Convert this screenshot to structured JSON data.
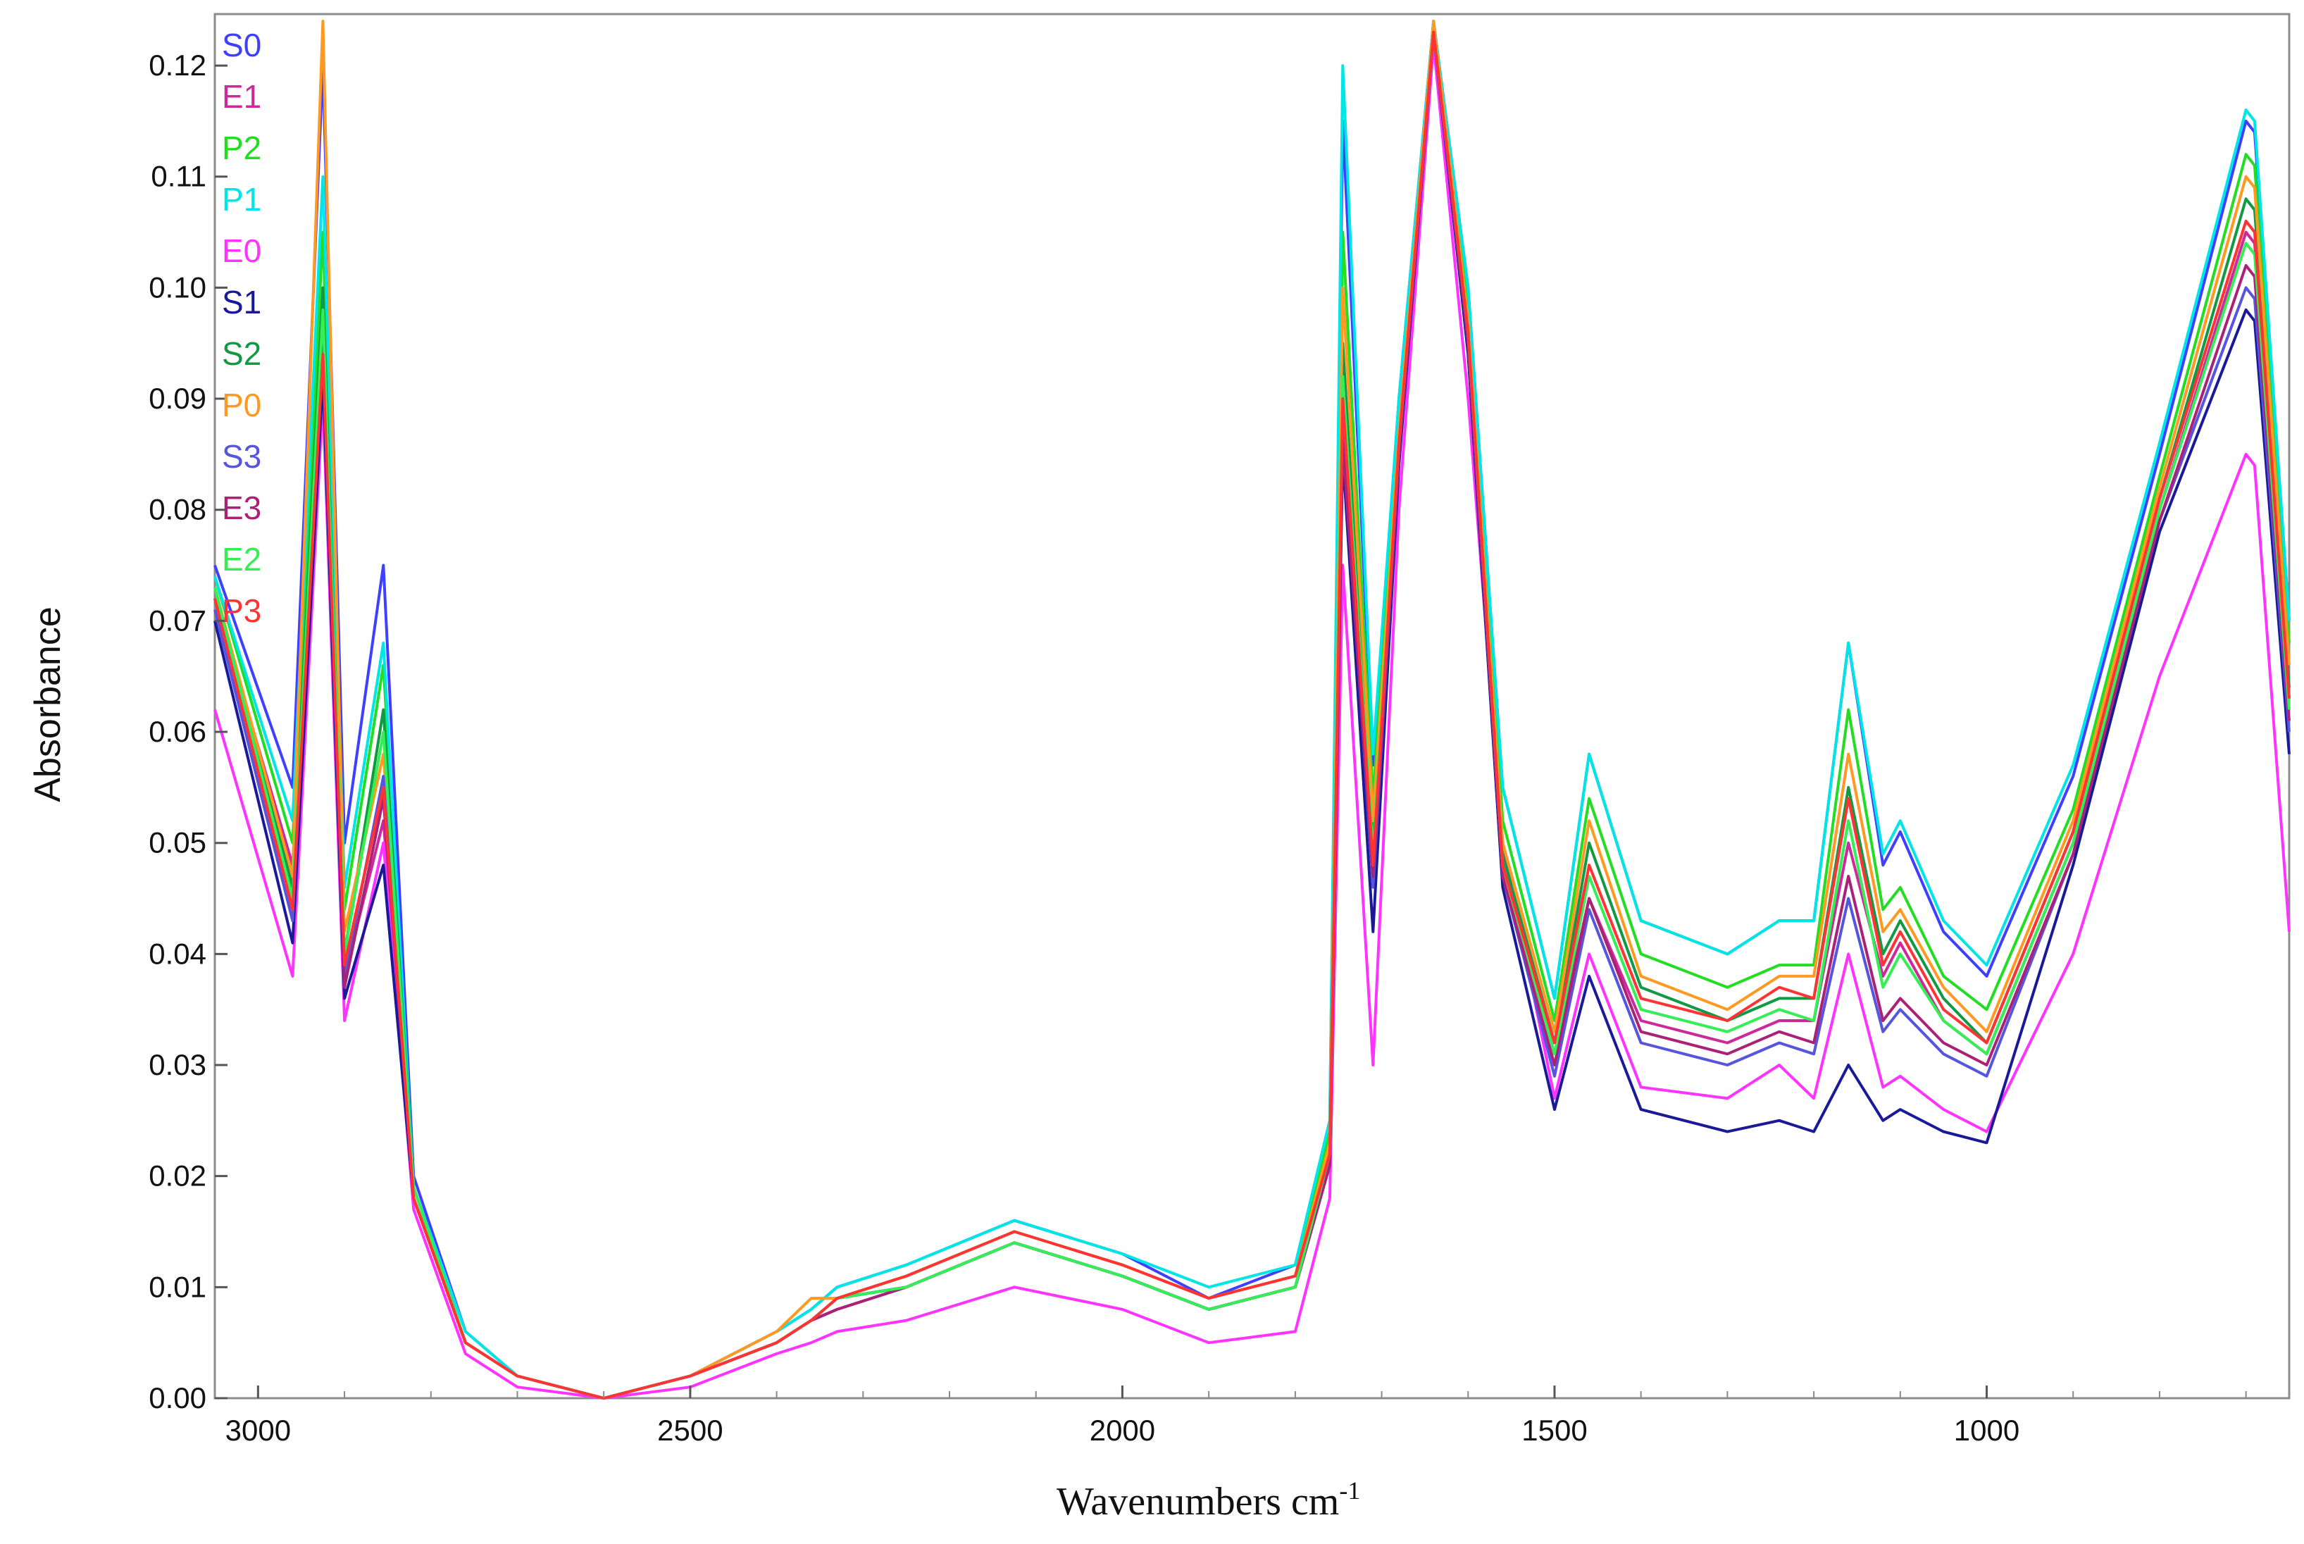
{
  "chart_data": {
    "type": "line",
    "title": "",
    "xlabel": "Wavenumbers cm",
    "xlabel_superscript": "-1",
    "ylabel": "Absorbance",
    "xlim": [
      3050,
      650
    ],
    "ylim": [
      0.0,
      0.124
    ],
    "x_reversed": true,
    "grid": false,
    "legend_position": "top-left",
    "x_tick_labels": [
      "3000",
      "2500",
      "2000",
      "1500",
      "1000"
    ],
    "y_tick_labels": [
      "0.00",
      "0.01",
      "0.02",
      "0.03",
      "0.04",
      "0.05",
      "0.06",
      "0.07",
      "0.08",
      "0.09",
      "0.10",
      "0.11",
      "0.12"
    ],
    "x_ticks": [
      3000,
      2500,
      2000,
      1500,
      1000
    ],
    "y_ticks": [
      0.0,
      0.01,
      0.02,
      0.03,
      0.04,
      0.05,
      0.06,
      0.07,
      0.08,
      0.09,
      0.1,
      0.11,
      0.12
    ],
    "x": [
      3050,
      2960,
      2925,
      2900,
      2855,
      2820,
      2760,
      2700,
      2600,
      2500,
      2400,
      2360,
      2330,
      2250,
      2125,
      2000,
      1900,
      1800,
      1760,
      1745,
      1710,
      1680,
      1640,
      1600,
      1560,
      1500,
      1460,
      1400,
      1300,
      1240,
      1200,
      1160,
      1120,
      1100,
      1050,
      1000,
      900,
      800,
      700,
      690,
      650
    ],
    "series": [
      {
        "name": "S0",
        "color": "#3f3fff",
        "values": [
          0.075,
          0.055,
          0.12,
          0.05,
          0.075,
          0.02,
          0.006,
          0.002,
          0.0,
          0.002,
          0.006,
          0.008,
          0.01,
          0.012,
          0.016,
          0.013,
          0.009,
          0.012,
          0.025,
          0.115,
          0.057,
          0.09,
          0.124,
          0.1,
          0.055,
          0.036,
          0.058,
          0.043,
          0.04,
          0.043,
          0.043,
          0.068,
          0.048,
          0.051,
          0.042,
          0.038,
          0.056,
          0.085,
          0.115,
          0.114,
          0.07
        ]
      },
      {
        "name": "E1",
        "color": "#cc2a9a",
        "values": [
          0.072,
          0.048,
          0.095,
          0.038,
          0.052,
          0.018,
          0.005,
          0.002,
          0.0,
          0.002,
          0.005,
          0.007,
          0.008,
          0.01,
          0.014,
          0.011,
          0.008,
          0.01,
          0.022,
          0.09,
          0.05,
          0.085,
          0.123,
          0.095,
          0.048,
          0.031,
          0.045,
          0.034,
          0.032,
          0.034,
          0.034,
          0.05,
          0.038,
          0.041,
          0.034,
          0.031,
          0.05,
          0.08,
          0.105,
          0.104,
          0.063
        ]
      },
      {
        "name": "P2",
        "color": "#22dd22",
        "values": [
          0.074,
          0.05,
          0.105,
          0.044,
          0.066,
          0.019,
          0.005,
          0.002,
          0.0,
          0.002,
          0.005,
          0.007,
          0.009,
          0.011,
          0.015,
          0.012,
          0.009,
          0.011,
          0.024,
          0.105,
          0.054,
          0.088,
          0.124,
          0.098,
          0.052,
          0.034,
          0.054,
          0.04,
          0.037,
          0.039,
          0.039,
          0.062,
          0.044,
          0.046,
          0.038,
          0.035,
          0.053,
          0.083,
          0.112,
          0.111,
          0.068
        ]
      },
      {
        "name": "P1",
        "color": "#00e5e5",
        "values": [
          0.074,
          0.052,
          0.11,
          0.046,
          0.068,
          0.019,
          0.006,
          0.002,
          0.0,
          0.002,
          0.006,
          0.008,
          0.01,
          0.012,
          0.016,
          0.013,
          0.01,
          0.012,
          0.025,
          0.12,
          0.058,
          0.09,
          0.124,
          0.1,
          0.055,
          0.036,
          0.058,
          0.043,
          0.04,
          0.043,
          0.043,
          0.068,
          0.049,
          0.052,
          0.043,
          0.039,
          0.057,
          0.086,
          0.116,
          0.115,
          0.07
        ]
      },
      {
        "name": "E0",
        "color": "#ff33ff",
        "values": [
          0.062,
          0.038,
          0.09,
          0.034,
          0.05,
          0.017,
          0.004,
          0.001,
          0.0,
          0.001,
          0.004,
          0.005,
          0.006,
          0.007,
          0.01,
          0.008,
          0.005,
          0.006,
          0.018,
          0.075,
          0.03,
          0.08,
          0.122,
          0.09,
          0.05,
          0.027,
          0.04,
          0.028,
          0.027,
          0.03,
          0.027,
          0.04,
          0.028,
          0.029,
          0.026,
          0.024,
          0.04,
          0.065,
          0.085,
          0.084,
          0.042
        ]
      },
      {
        "name": "S1",
        "color": "#1a1a99",
        "values": [
          0.07,
          0.041,
          0.092,
          0.036,
          0.048,
          0.018,
          0.005,
          0.002,
          0.0,
          0.002,
          0.005,
          0.007,
          0.009,
          0.01,
          0.014,
          0.011,
          0.008,
          0.01,
          0.021,
          0.085,
          0.042,
          0.084,
          0.123,
          0.094,
          0.046,
          0.026,
          0.038,
          0.026,
          0.024,
          0.025,
          0.024,
          0.03,
          0.025,
          0.026,
          0.024,
          0.023,
          0.048,
          0.078,
          0.098,
          0.097,
          0.058
        ]
      },
      {
        "name": "S2",
        "color": "#119944",
        "values": [
          0.073,
          0.046,
          0.1,
          0.04,
          0.062,
          0.019,
          0.005,
          0.002,
          0.0,
          0.002,
          0.005,
          0.007,
          0.009,
          0.01,
          0.014,
          0.011,
          0.008,
          0.01,
          0.022,
          0.095,
          0.05,
          0.086,
          0.123,
          0.096,
          0.049,
          0.032,
          0.05,
          0.037,
          0.034,
          0.036,
          0.036,
          0.055,
          0.04,
          0.043,
          0.036,
          0.032,
          0.051,
          0.081,
          0.108,
          0.107,
          0.064
        ]
      },
      {
        "name": "P0",
        "color": "#ff9922",
        "values": [
          0.073,
          0.047,
          0.124,
          0.042,
          0.058,
          0.019,
          0.005,
          0.002,
          0.0,
          0.002,
          0.006,
          0.009,
          0.009,
          0.011,
          0.015,
          0.012,
          0.009,
          0.011,
          0.023,
          0.1,
          0.052,
          0.087,
          0.124,
          0.097,
          0.05,
          0.033,
          0.052,
          0.038,
          0.035,
          0.038,
          0.038,
          0.058,
          0.042,
          0.044,
          0.037,
          0.033,
          0.052,
          0.082,
          0.11,
          0.109,
          0.066
        ]
      },
      {
        "name": "S3",
        "color": "#5555dd",
        "values": [
          0.071,
          0.043,
          0.097,
          0.038,
          0.056,
          0.018,
          0.005,
          0.002,
          0.0,
          0.002,
          0.005,
          0.007,
          0.009,
          0.01,
          0.014,
          0.011,
          0.008,
          0.01,
          0.021,
          0.088,
          0.046,
          0.085,
          0.123,
          0.095,
          0.047,
          0.029,
          0.044,
          0.032,
          0.03,
          0.032,
          0.031,
          0.045,
          0.033,
          0.035,
          0.031,
          0.029,
          0.049,
          0.079,
          0.1,
          0.099,
          0.06
        ]
      },
      {
        "name": "E3",
        "color": "#aa2277",
        "values": [
          0.072,
          0.044,
          0.096,
          0.037,
          0.054,
          0.018,
          0.005,
          0.002,
          0.0,
          0.002,
          0.005,
          0.007,
          0.008,
          0.01,
          0.014,
          0.011,
          0.008,
          0.01,
          0.021,
          0.086,
          0.047,
          0.085,
          0.123,
          0.095,
          0.047,
          0.03,
          0.045,
          0.033,
          0.031,
          0.033,
          0.032,
          0.047,
          0.034,
          0.036,
          0.032,
          0.03,
          0.049,
          0.079,
          0.102,
          0.101,
          0.061
        ]
      },
      {
        "name": "E2",
        "color": "#33ee55",
        "values": [
          0.073,
          0.045,
          0.098,
          0.04,
          0.06,
          0.019,
          0.005,
          0.002,
          0.0,
          0.002,
          0.005,
          0.007,
          0.009,
          0.01,
          0.014,
          0.011,
          0.008,
          0.01,
          0.022,
          0.092,
          0.049,
          0.086,
          0.123,
          0.096,
          0.048,
          0.031,
          0.047,
          0.035,
          0.033,
          0.035,
          0.034,
          0.052,
          0.037,
          0.04,
          0.034,
          0.031,
          0.05,
          0.08,
          0.104,
          0.103,
          0.062
        ]
      },
      {
        "name": "P3",
        "color": "#ff3333",
        "values": [
          0.072,
          0.044,
          0.094,
          0.039,
          0.055,
          0.018,
          0.005,
          0.002,
          0.0,
          0.002,
          0.005,
          0.007,
          0.009,
          0.011,
          0.015,
          0.012,
          0.009,
          0.011,
          0.022,
          0.09,
          0.048,
          0.086,
          0.123,
          0.096,
          0.048,
          0.032,
          0.048,
          0.036,
          0.034,
          0.037,
          0.036,
          0.054,
          0.039,
          0.042,
          0.035,
          0.032,
          0.051,
          0.081,
          0.106,
          0.105,
          0.063
        ]
      }
    ]
  }
}
